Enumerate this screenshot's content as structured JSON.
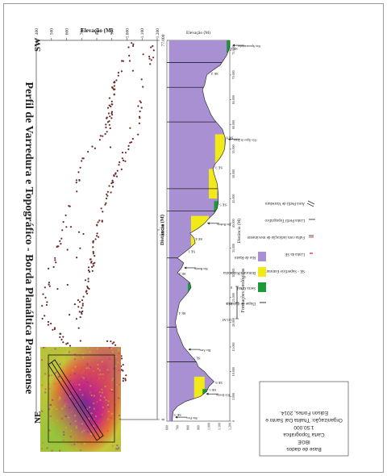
{
  "title": "Perfil de Varredura e Topográfico - Borda Planáltica Paranaense",
  "chart_data": [
    {
      "type": "scatter",
      "title": "",
      "xlabel": "Distância (M)",
      "ylabel": "Elevação (M)",
      "xlim": [
        0,
        77000
      ],
      "ylim": [
        400,
        1200
      ],
      "x_ticks": [
        "0",
        "38.500",
        "77.000"
      ],
      "y_ticks": [
        "400",
        "500",
        "600",
        "700",
        "800",
        "900",
        "1.000",
        "1.100",
        "1.200"
      ],
      "end_labels": {
        "left": "SW",
        "right": "NE"
      },
      "point_color": "#6b2a2a",
      "seed": 17,
      "envelope_lower": [
        [
          0,
          540
        ],
        [
          8000,
          590
        ],
        [
          14000,
          620
        ],
        [
          21000,
          420
        ],
        [
          30000,
          470
        ],
        [
          38500,
          560
        ],
        [
          46000,
          640
        ],
        [
          53000,
          700
        ],
        [
          59000,
          850
        ],
        [
          66000,
          880
        ],
        [
          72000,
          950
        ],
        [
          77000,
          1030
        ]
      ],
      "envelope_upper": [
        [
          0,
          760
        ],
        [
          8000,
          1000
        ],
        [
          14000,
          980
        ],
        [
          21000,
          700
        ],
        [
          30000,
          780
        ],
        [
          38500,
          820
        ],
        [
          46000,
          900
        ],
        [
          53000,
          1000
        ],
        [
          59000,
          1100
        ],
        [
          66000,
          1110
        ],
        [
          72000,
          1160
        ],
        [
          77000,
          1210
        ]
      ],
      "n_points": 290
    },
    {
      "type": "area",
      "xlabel": "Distância (M)",
      "ylabel": "Elevação (M)",
      "xlim": [
        0,
        77000
      ],
      "ylim": [
        600,
        1200
      ],
      "x_ticks": [
        "0",
        "5.000",
        "10.000",
        "15.000",
        "20.000",
        "25.000",
        "30.000",
        "35.000",
        "40.000",
        "45.000",
        "50.000",
        "55.000",
        "60.000",
        "65.000",
        "70.000",
        "75.000"
      ],
      "x_tick_values": [
        0,
        5000,
        10000,
        15000,
        20000,
        25000,
        30000,
        35000,
        40000,
        45000,
        50000,
        55000,
        60000,
        65000,
        70000,
        75000
      ],
      "y_ticks": [
        "600",
        "700",
        "800",
        "900",
        "1.000",
        "1.100",
        "1.200"
      ],
      "y_tick_values": [
        600,
        700,
        800,
        900,
        1000,
        1100,
        1200
      ],
      "profile": [
        [
          0,
          650
        ],
        [
          2000,
          660
        ],
        [
          3000,
          700
        ],
        [
          4000,
          780
        ],
        [
          5000,
          920
        ],
        [
          6000,
          980
        ],
        [
          7000,
          1000
        ],
        [
          8000,
          1050
        ],
        [
          9000,
          1000
        ],
        [
          10000,
          960
        ],
        [
          11000,
          900
        ],
        [
          12000,
          880
        ],
        [
          13000,
          840
        ],
        [
          14000,
          800
        ],
        [
          15000,
          760
        ],
        [
          17000,
          720
        ],
        [
          18000,
          700
        ],
        [
          20000,
          680
        ],
        [
          22000,
          700
        ],
        [
          24000,
          720
        ],
        [
          25000,
          760
        ],
        [
          26000,
          800
        ],
        [
          27000,
          830
        ],
        [
          28000,
          820
        ],
        [
          29000,
          760
        ],
        [
          30000,
          700
        ],
        [
          31000,
          740
        ],
        [
          32000,
          760
        ],
        [
          33000,
          700
        ],
        [
          34000,
          760
        ],
        [
          35000,
          820
        ],
        [
          36000,
          870
        ],
        [
          37000,
          860
        ],
        [
          38000,
          820
        ],
        [
          39000,
          900
        ],
        [
          40000,
          960
        ],
        [
          41000,
          1000
        ],
        [
          42000,
          1050
        ],
        [
          43000,
          1080
        ],
        [
          44000,
          1090
        ],
        [
          46000,
          1090
        ],
        [
          48000,
          1080
        ],
        [
          50000,
          1050
        ],
        [
          51000,
          1040
        ],
        [
          52000,
          1060
        ],
        [
          53000,
          1100
        ],
        [
          54000,
          1130
        ],
        [
          55000,
          1150
        ],
        [
          57000,
          1160
        ],
        [
          59000,
          1130
        ],
        [
          60000,
          1090
        ],
        [
          61000,
          1050
        ],
        [
          62000,
          1020
        ],
        [
          63000,
          1000
        ],
        [
          64000,
          980
        ],
        [
          65000,
          960
        ],
        [
          67000,
          940
        ],
        [
          68000,
          960
        ],
        [
          70000,
          980
        ],
        [
          71000,
          1040
        ],
        [
          72000,
          1110
        ],
        [
          73000,
          1140
        ],
        [
          74000,
          1170
        ],
        [
          75000,
          1190
        ],
        [
          76000,
          1200
        ],
        [
          77000,
          1200
        ]
      ],
      "series": [
        {
          "name": "Serra Geral",
          "color": "#1a9a3a",
          "bands": [
            [
              4500,
              6500,
              940,
              1000
            ],
            [
              26000,
              28000,
              800,
              830
            ],
            [
              42000,
              44500,
              1050,
              1090
            ],
            [
              74500,
              77000,
              1170,
              1200
            ]
          ]
        },
        {
          "name": "Botucatu/Pirambóia",
          "color": "#f2ea18",
          "bands": [
            [
              2500,
              9000,
              860,
              960
            ],
            [
              35000,
              41500,
              830,
              1000
            ],
            [
              45000,
              51000,
              1000,
              1080
            ],
            [
              52000,
              58000,
              1060,
              1150
            ]
          ]
        },
        {
          "name": "Rio do Rasto",
          "color": "#a890d2",
          "bands": [
            [
              0,
              77000,
              620,
              1200
            ]
          ]
        }
      ],
      "annotations": [
        "SE 3",
        "SE 5",
        "SE 6",
        "SE 7",
        "SE 4",
        "SE 2",
        "SE 1",
        "SE 4",
        "SE 5",
        "SE 3",
        "SE 8",
        "SE 2",
        "SE 4"
      ],
      "annotation_x": [
        1500,
        6500,
        8000,
        13000,
        22000,
        30000,
        34500,
        37000,
        44000,
        51500,
        57500,
        70500,
        75500
      ],
      "rivers": [
        "Rio Fico",
        "Rio Bonito",
        "Rio Ateu",
        "Rio Bonito",
        "Rio Rodeio",
        "Rio Água de Prata",
        "Rio Apucaraninha"
      ],
      "river_x": [
        800,
        5500,
        14500,
        31000,
        40000,
        57000,
        76000
      ]
    }
  ],
  "legend": {
    "structures": [
      {
        "symbol": "SE",
        "label": "SE - Superfície Estrutural"
      },
      {
        "symbol": "se-line",
        "label": "Linha da SE"
      },
      {
        "symbol": "fault",
        "label": "Falha com indicação de movimento"
      },
      {
        "symbol": "topo",
        "label": "Linha Perfil Topográfico"
      },
      {
        "symbol": "swath",
        "label": "Área Perfil de Varredura"
      }
    ],
    "formations_title": "Formações Geológicas",
    "formations": [
      {
        "label": "Dique de diabásio",
        "color": "#333333",
        "kind": "dike"
      },
      {
        "label": "Serra Geral",
        "color": "#1a9a3a",
        "kind": "box"
      },
      {
        "label": "Botucatu/Pirambóia",
        "color": "#f2ea18",
        "kind": "box"
      },
      {
        "label": "Rio do Rasto",
        "color": "#a890d2",
        "kind": "box"
      }
    ]
  },
  "scale_bar": {
    "labels": [
      "0",
      "62,5",
      "125 M"
    ]
  },
  "credits": {
    "line1": "Base de dados",
    "line2": "IBGE",
    "line3": "Carta Topográfica",
    "line4": "1:50.000",
    "line5": "Organização: Thalita Dal Santo e",
    "line6": "Edison Fortes, 2014."
  }
}
